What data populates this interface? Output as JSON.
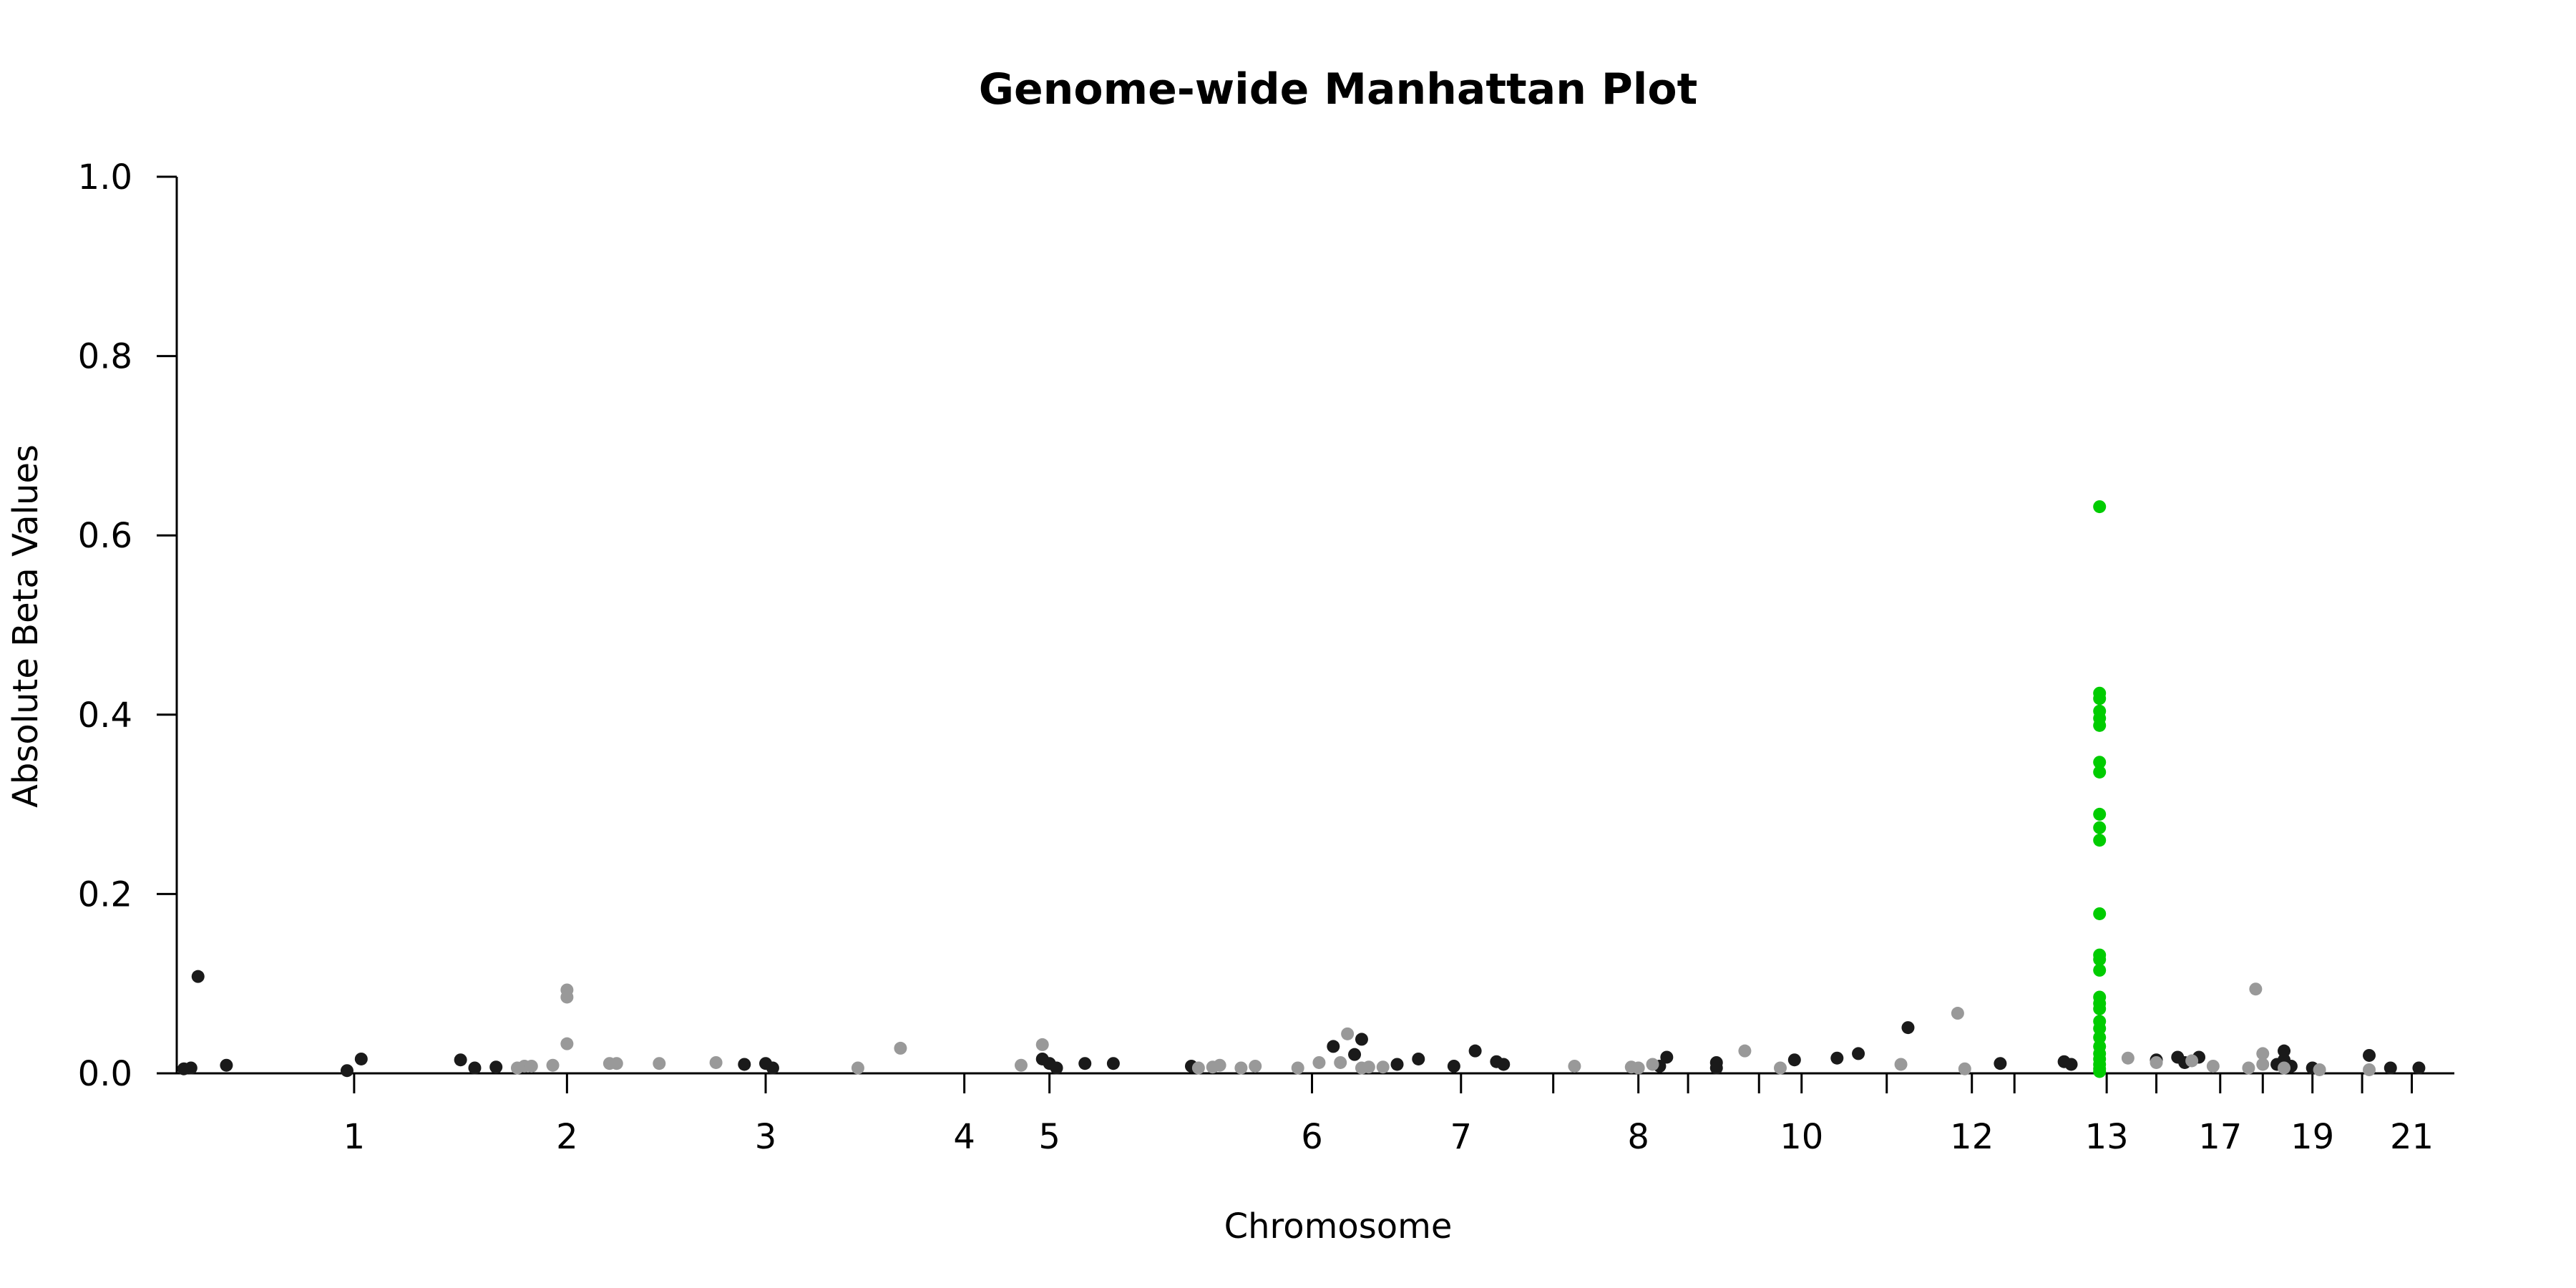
{
  "chart_data": {
    "type": "scatter",
    "title": "Genome-wide Manhattan Plot",
    "xlabel": "Chromosome",
    "ylabel": "Absolute Beta Values",
    "ylim": [
      0,
      1.0
    ],
    "yticks": [
      "0.0",
      "0.2",
      "0.4",
      "0.6",
      "0.8",
      "1.0"
    ],
    "xlim": [
      0,
      3.21
    ],
    "x_unit": "genomic position (Gb, cumulative)",
    "chromosomes": [
      {
        "label": "1",
        "center": 0.25,
        "end": 0.25
      },
      {
        "label": "2",
        "center": 0.55,
        "end": 0.55
      },
      {
        "label": "3",
        "center": 0.83,
        "end": 0.83
      },
      {
        "label": "4",
        "center": 1.11,
        "end": 1.11
      },
      {
        "label": "5",
        "center": 1.23,
        "end": 1.23
      },
      {
        "label": "6",
        "center": 1.6,
        "end": 1.6
      },
      {
        "label": "7",
        "center": 1.81,
        "end": 1.81
      },
      {
        "label": "",
        "center": 1.94,
        "end": 1.94
      },
      {
        "label": "8",
        "center": 2.06,
        "end": 2.06
      },
      {
        "label": "",
        "center": 2.13,
        "end": 2.13
      },
      {
        "label": "",
        "center": 2.23,
        "end": 2.23
      },
      {
        "label": "10",
        "center": 2.29,
        "end": 2.29
      },
      {
        "label": "",
        "center": 2.41,
        "end": 2.41
      },
      {
        "label": "12",
        "center": 2.53,
        "end": 2.53
      },
      {
        "label": "",
        "center": 2.59,
        "end": 2.59
      },
      {
        "label": "13",
        "center": 2.72,
        "end": 2.72
      },
      {
        "label": "",
        "center": 2.79,
        "end": 2.79
      },
      {
        "label": "17",
        "center": 2.88,
        "end": 2.88
      },
      {
        "label": "",
        "center": 2.94,
        "end": 2.94
      },
      {
        "label": "19",
        "center": 3.01,
        "end": 3.01
      },
      {
        "label": "",
        "center": 3.08,
        "end": 3.08
      },
      {
        "label": "21",
        "center": 3.15,
        "end": 3.15
      }
    ],
    "series": [
      {
        "color": "#1a1a1a",
        "points": [
          [
            0.01,
            0.005
          ],
          [
            0.03,
            0.108
          ],
          [
            0.02,
            0.006
          ],
          [
            0.07,
            0.009
          ],
          [
            0.24,
            0.003
          ],
          [
            0.26,
            0.016
          ],
          [
            0.4,
            0.015
          ],
          [
            0.42,
            0.006
          ],
          [
            0.45,
            0.007
          ],
          [
            0.8,
            0.01
          ],
          [
            0.83,
            0.011
          ],
          [
            0.84,
            0.006
          ],
          [
            1.22,
            0.016
          ],
          [
            1.23,
            0.011
          ],
          [
            1.24,
            0.006
          ],
          [
            1.28,
            0.011
          ],
          [
            1.32,
            0.011
          ],
          [
            1.43,
            0.008
          ],
          [
            1.63,
            0.03
          ],
          [
            1.66,
            0.021
          ],
          [
            1.67,
            0.038
          ],
          [
            1.72,
            0.01
          ],
          [
            1.75,
            0.016
          ],
          [
            1.8,
            0.008
          ],
          [
            1.83,
            0.025
          ],
          [
            1.86,
            0.013
          ],
          [
            1.87,
            0.01
          ],
          [
            2.09,
            0.008
          ],
          [
            2.1,
            0.018
          ],
          [
            2.17,
            0.012
          ],
          [
            2.17,
            0.006
          ],
          [
            2.28,
            0.015
          ],
          [
            2.34,
            0.017
          ],
          [
            2.37,
            0.022
          ],
          [
            2.44,
            0.051
          ],
          [
            2.57,
            0.011
          ],
          [
            2.66,
            0.013
          ],
          [
            2.67,
            0.01
          ],
          [
            2.79,
            0.015
          ],
          [
            2.82,
            0.018
          ],
          [
            2.83,
            0.012
          ],
          [
            2.85,
            0.018
          ],
          [
            2.96,
            0.01
          ],
          [
            2.97,
            0.025
          ],
          [
            2.97,
            0.015
          ],
          [
            2.98,
            0.008
          ],
          [
            3.01,
            0.006
          ],
          [
            3.09,
            0.02
          ],
          [
            3.12,
            0.006
          ],
          [
            3.16,
            0.006
          ]
        ]
      },
      {
        "color": "#999999",
        "points": [
          [
            0.48,
            0.006
          ],
          [
            0.49,
            0.008
          ],
          [
            0.5,
            0.008
          ],
          [
            0.53,
            0.009
          ],
          [
            0.55,
            0.093
          ],
          [
            0.55,
            0.085
          ],
          [
            0.55,
            0.033
          ],
          [
            0.61,
            0.011
          ],
          [
            0.62,
            0.011
          ],
          [
            0.68,
            0.011
          ],
          [
            0.76,
            0.012
          ],
          [
            0.96,
            0.006
          ],
          [
            1.02,
            0.028
          ],
          [
            1.19,
            0.009
          ],
          [
            1.22,
            0.032
          ],
          [
            1.44,
            0.006
          ],
          [
            1.46,
            0.007
          ],
          [
            1.47,
            0.009
          ],
          [
            1.5,
            0.006
          ],
          [
            1.52,
            0.008
          ],
          [
            1.58,
            0.006
          ],
          [
            1.61,
            0.012
          ],
          [
            1.64,
            0.012
          ],
          [
            1.65,
            0.044
          ],
          [
            1.67,
            0.006
          ],
          [
            1.68,
            0.007
          ],
          [
            1.7,
            0.007
          ],
          [
            1.97,
            0.008
          ],
          [
            2.05,
            0.007
          ],
          [
            2.06,
            0.006
          ],
          [
            2.08,
            0.01
          ],
          [
            2.21,
            0.025
          ],
          [
            2.26,
            0.006
          ],
          [
            2.43,
            0.01
          ],
          [
            2.51,
            0.067
          ],
          [
            2.52,
            0.005
          ],
          [
            2.75,
            0.017
          ],
          [
            2.79,
            0.012
          ],
          [
            2.84,
            0.014
          ],
          [
            2.87,
            0.008
          ],
          [
            2.92,
            0.006
          ],
          [
            2.93,
            0.094
          ],
          [
            2.94,
            0.022
          ],
          [
            2.94,
            0.01
          ],
          [
            2.97,
            0.006
          ],
          [
            3.02,
            0.004
          ],
          [
            3.09,
            0.004
          ]
        ]
      },
      {
        "color": "#00cc00",
        "points": [
          [
            2.71,
            0.632
          ],
          [
            2.71,
            0.424
          ],
          [
            2.71,
            0.418
          ],
          [
            2.71,
            0.404
          ],
          [
            2.71,
            0.396
          ],
          [
            2.71,
            0.388
          ],
          [
            2.71,
            0.347
          ],
          [
            2.71,
            0.336
          ],
          [
            2.71,
            0.289
          ],
          [
            2.71,
            0.274
          ],
          [
            2.71,
            0.26
          ],
          [
            2.71,
            0.178
          ],
          [
            2.71,
            0.132
          ],
          [
            2.71,
            0.127
          ],
          [
            2.71,
            0.115
          ],
          [
            2.71,
            0.085
          ],
          [
            2.71,
            0.078
          ],
          [
            2.71,
            0.072
          ],
          [
            2.71,
            0.058
          ],
          [
            2.71,
            0.05
          ],
          [
            2.71,
            0.04
          ],
          [
            2.71,
            0.03
          ],
          [
            2.71,
            0.022
          ],
          [
            2.71,
            0.016
          ],
          [
            2.71,
            0.01
          ],
          [
            2.71,
            0.005
          ],
          [
            2.71,
            0.002
          ]
        ]
      }
    ]
  }
}
